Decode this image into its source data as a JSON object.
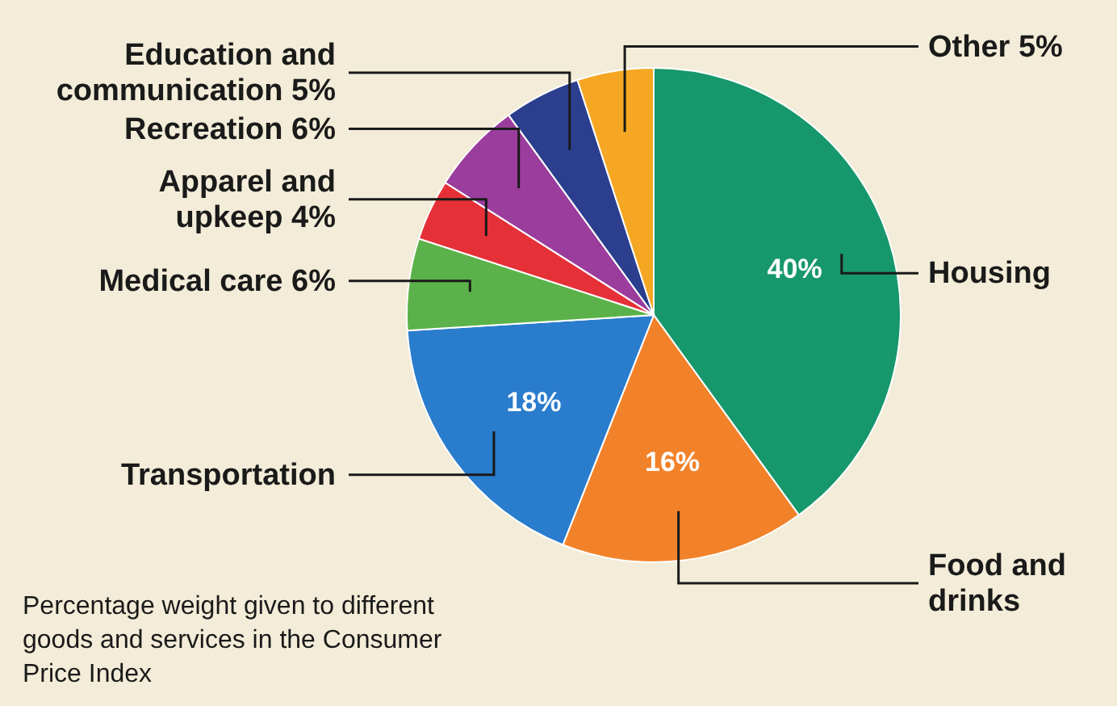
{
  "chart_data": {
    "type": "pie",
    "categories": [
      "Housing",
      "Food and drinks",
      "Transportation",
      "Medical care",
      "Apparel and upkeep",
      "Recreation",
      "Education and communication",
      "Other"
    ],
    "values": [
      40,
      16,
      18,
      6,
      4,
      6,
      5,
      5
    ],
    "colors": [
      "#17976c",
      "#f2822a",
      "#2a7ccc",
      "#5cb24a",
      "#e53038",
      "#9a3d9d",
      "#2b3f8e",
      "#f5a623"
    ],
    "value_labels": [
      "40%",
      "16%",
      "18%",
      "6%",
      "4%",
      "6%",
      "5%",
      "5%"
    ],
    "annotations": [
      "Percentage weight given to different goods and services in the Consumer Price Index"
    ]
  }
}
